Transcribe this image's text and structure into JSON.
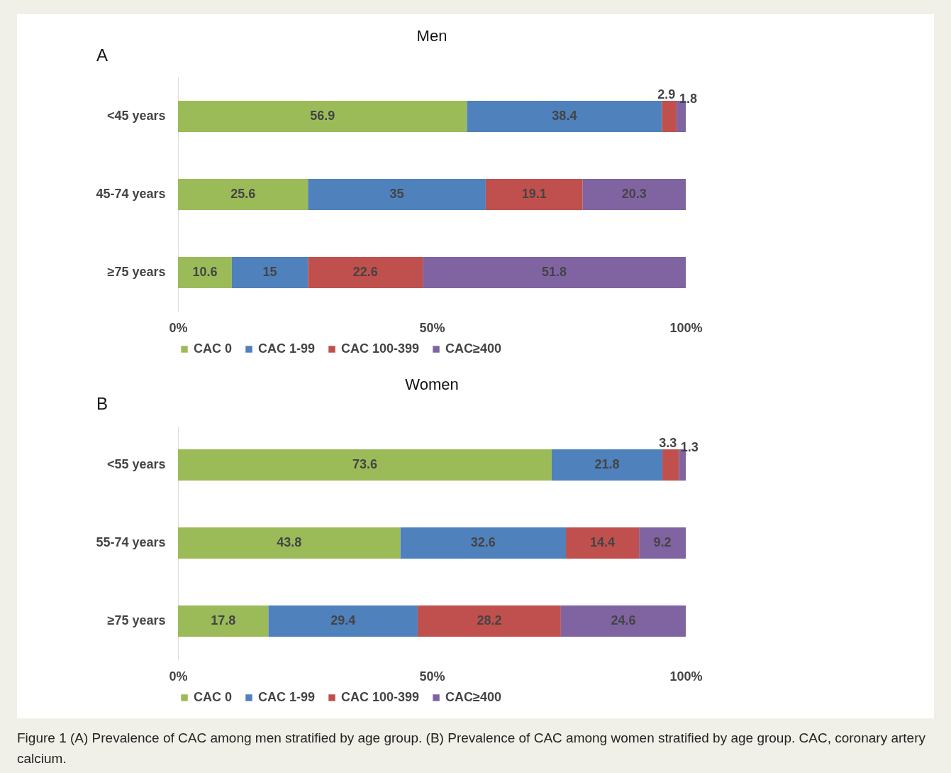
{
  "chart_data": [
    {
      "type": "bar",
      "orientation": "horizontal",
      "stacked": true,
      "title": "Men",
      "annotations": [
        "A"
      ],
      "categories": [
        "<45 years",
        "45-74 years",
        "≥75 years"
      ],
      "xlim": [
        0,
        100
      ],
      "xticks": [
        {
          "value": 0,
          "label": "0%"
        },
        {
          "value": 50,
          "label": "50%"
        },
        {
          "value": 100,
          "label": "100%"
        }
      ],
      "data_labels": true,
      "legend": "bottom",
      "grid": false,
      "series": [
        {
          "name": "CAC 0",
          "color": "#9bbb59",
          "values": [
            56.9,
            25.6,
            10.6
          ]
        },
        {
          "name": "CAC 1-99",
          "color": "#4f81bd",
          "values": [
            38.4,
            35,
            15
          ]
        },
        {
          "name": "CAC 100-399",
          "color": "#c0504d",
          "values": [
            2.9,
            19.1,
            22.6
          ]
        },
        {
          "name": "CAC≥400",
          "color": "#8064a2",
          "values": [
            1.8,
            20.3,
            51.8
          ]
        }
      ]
    },
    {
      "type": "bar",
      "orientation": "horizontal",
      "stacked": true,
      "title": "Women",
      "annotations": [
        "B",
        "Figure 1 (A) Prevalence of CAC among men stratified by age group. (B) Prevalence of CAC among women stratified by age group. CAC, coronary artery calcium."
      ],
      "categories": [
        "<55 years",
        "55-74 years",
        "≥75 years"
      ],
      "xlim": [
        0,
        100
      ],
      "xticks": [
        {
          "value": 0,
          "label": "0%"
        },
        {
          "value": 50,
          "label": "50%"
        },
        {
          "value": 100,
          "label": "100%"
        }
      ],
      "data_labels": true,
      "legend": "bottom",
      "grid": false,
      "series": [
        {
          "name": "CAC 0",
          "color": "#9bbb59",
          "values": [
            73.6,
            43.8,
            17.8
          ]
        },
        {
          "name": "CAC 1-99",
          "color": "#4f81bd",
          "values": [
            21.8,
            32.6,
            29.4
          ]
        },
        {
          "name": "CAC 100-399",
          "color": "#c0504d",
          "values": [
            3.3,
            14.4,
            28.2
          ]
        },
        {
          "name": "CAC≥400",
          "color": "#8064a2",
          "values": [
            1.3,
            9.2,
            24.6
          ]
        }
      ]
    }
  ]
}
